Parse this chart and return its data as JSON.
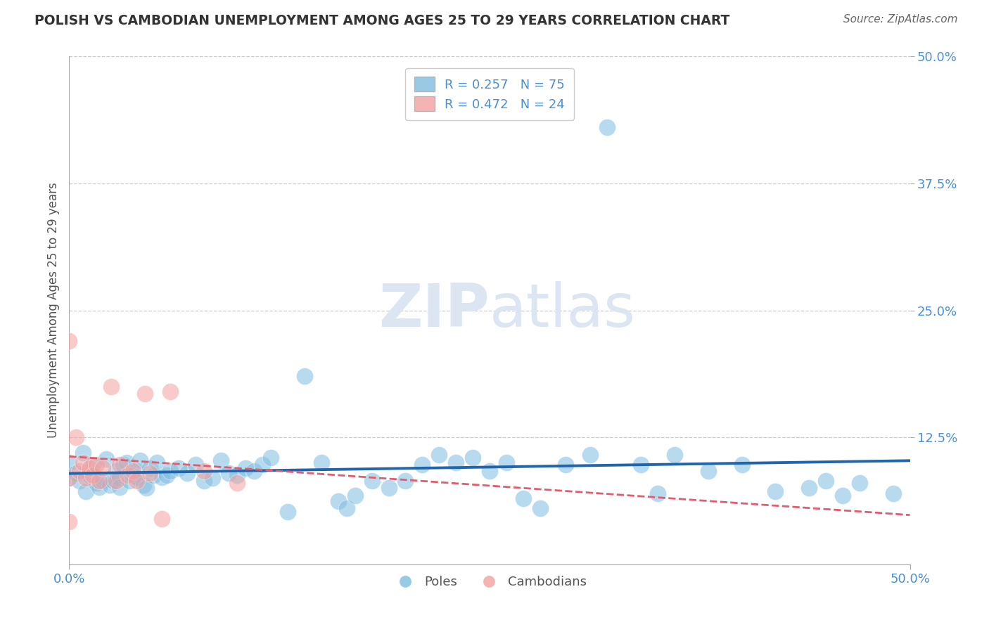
{
  "title": "POLISH VS CAMBODIAN UNEMPLOYMENT AMONG AGES 25 TO 29 YEARS CORRELATION CHART",
  "source": "Source: ZipAtlas.com",
  "ylabel": "Unemployment Among Ages 25 to 29 years",
  "xlim": [
    0.0,
    0.5
  ],
  "ylim": [
    0.0,
    0.5
  ],
  "xtick_positions": [
    0.0,
    0.5
  ],
  "xtick_labels": [
    "0.0%",
    "50.0%"
  ],
  "ytick_positions": [
    0.125,
    0.25,
    0.375,
    0.5
  ],
  "ytick_labels": [
    "12.5%",
    "25.0%",
    "37.5%",
    "50.0%"
  ],
  "grid_hlines": [
    0.125,
    0.25,
    0.375,
    0.5
  ],
  "poles_color": "#7fbde0",
  "poles_edge_color": "#5b9ec9",
  "cambodians_color": "#f4a0a0",
  "cambodians_edge_color": "#e07070",
  "poles_R": 0.257,
  "poles_N": 75,
  "cambodians_R": 0.472,
  "cambodians_N": 24,
  "poles_line_color": "#2166ac",
  "cambodians_line_color": "#e05c6e",
  "watermark_zip": "ZIP",
  "watermark_atlas": "atlas",
  "watermark_color": "#dce5f2",
  "background_color": "#ffffff",
  "grid_color": "#cccccc",
  "axis_label_color": "#4a90d9",
  "title_color": "#333333",
  "source_color": "#666666",
  "ylabel_color": "#555555",
  "poles_x": [
    0.0,
    0.0,
    0.004,
    0.006,
    0.008,
    0.01,
    0.012,
    0.014,
    0.016,
    0.018,
    0.02,
    0.022,
    0.024,
    0.026,
    0.028,
    0.03,
    0.03,
    0.032,
    0.034,
    0.036,
    0.038,
    0.04,
    0.04,
    0.042,
    0.044,
    0.046,
    0.048,
    0.05,
    0.052,
    0.055,
    0.058,
    0.06,
    0.065,
    0.07,
    0.075,
    0.08,
    0.085,
    0.09,
    0.095,
    0.1,
    0.105,
    0.11,
    0.115,
    0.12,
    0.13,
    0.14,
    0.15,
    0.16,
    0.165,
    0.17,
    0.18,
    0.19,
    0.2,
    0.21,
    0.22,
    0.23,
    0.24,
    0.25,
    0.26,
    0.27,
    0.28,
    0.295,
    0.31,
    0.32,
    0.34,
    0.35,
    0.36,
    0.38,
    0.4,
    0.42,
    0.44,
    0.45,
    0.46,
    0.47,
    0.49
  ],
  "poles_y": [
    0.085,
    0.1,
    0.09,
    0.082,
    0.11,
    0.072,
    0.088,
    0.098,
    0.08,
    0.076,
    0.082,
    0.104,
    0.078,
    0.082,
    0.092,
    0.085,
    0.076,
    0.098,
    0.1,
    0.082,
    0.088,
    0.092,
    0.086,
    0.102,
    0.078,
    0.075,
    0.095,
    0.088,
    0.1,
    0.086,
    0.088,
    0.092,
    0.095,
    0.09,
    0.098,
    0.082,
    0.085,
    0.102,
    0.09,
    0.088,
    0.095,
    0.092,
    0.098,
    0.105,
    0.052,
    0.185,
    0.1,
    0.062,
    0.055,
    0.068,
    0.082,
    0.075,
    0.082,
    0.098,
    0.108,
    0.1,
    0.105,
    0.092,
    0.1,
    0.065,
    0.055,
    0.098,
    0.108,
    0.43,
    0.098,
    0.07,
    0.108,
    0.092,
    0.098,
    0.072,
    0.075,
    0.082,
    0.068,
    0.08,
    0.07
  ],
  "camb_x": [
    0.0,
    0.0,
    0.0,
    0.004,
    0.006,
    0.008,
    0.01,
    0.012,
    0.014,
    0.016,
    0.018,
    0.02,
    0.025,
    0.028,
    0.03,
    0.035,
    0.038,
    0.04,
    0.045,
    0.048,
    0.055,
    0.06,
    0.08,
    0.1
  ],
  "camb_y": [
    0.22,
    0.085,
    0.042,
    0.125,
    0.092,
    0.1,
    0.085,
    0.095,
    0.088,
    0.098,
    0.082,
    0.095,
    0.175,
    0.082,
    0.098,
    0.088,
    0.092,
    0.082,
    0.168,
    0.09,
    0.045,
    0.17,
    0.092,
    0.08
  ]
}
